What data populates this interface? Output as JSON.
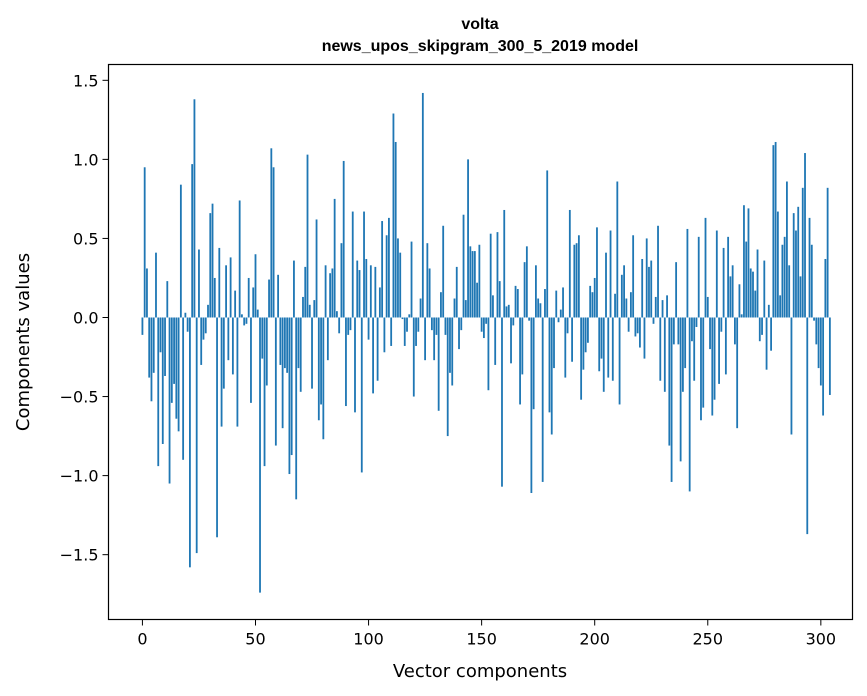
{
  "chart_data": {
    "type": "bar",
    "title": "volta",
    "subtitle": "news_upos_skipgram_300_5_2019 model",
    "xlabel": "Vector components",
    "ylabel": "Components values",
    "xlim": [
      -15,
      314
    ],
    "ylim": [
      -1.91,
      1.6
    ],
    "xticks": [
      0,
      50,
      100,
      150,
      200,
      250,
      300
    ],
    "yticks": [
      -1.5,
      -1.0,
      -0.5,
      0.0,
      0.5,
      1.0,
      1.5
    ],
    "ytick_labels": [
      "−1.5",
      "−1.0",
      "−0.5",
      "0.0",
      "0.5",
      "1.0",
      "1.5"
    ],
    "xtick_labels": [
      "0",
      "50",
      "100",
      "150",
      "200",
      "250",
      "300"
    ],
    "grid": false,
    "bar_color": "#1f77b4",
    "values": [
      -0.11,
      0.95,
      0.31,
      -0.38,
      -0.53,
      -0.35,
      0.41,
      -0.94,
      -0.22,
      -0.8,
      -0.37,
      0.23,
      -1.05,
      -0.54,
      -0.42,
      -0.64,
      -0.72,
      0.84,
      -0.9,
      0.03,
      -0.09,
      -1.58,
      0.97,
      1.38,
      -1.49,
      0.43,
      -0.3,
      -0.14,
      -0.1,
      0.08,
      0.66,
      0.72,
      0.25,
      -1.39,
      0.44,
      -0.69,
      -0.45,
      0.33,
      -0.27,
      0.38,
      -0.36,
      0.17,
      -0.69,
      0.74,
      0.02,
      -0.05,
      -0.04,
      0.25,
      -0.54,
      0.19,
      0.4,
      0.05,
      -1.74,
      -0.26,
      -0.94,
      -0.43,
      0.24,
      1.07,
      0.95,
      -0.81,
      0.27,
      -0.3,
      -0.7,
      -0.32,
      -0.35,
      -0.99,
      -0.87,
      0.36,
      -1.15,
      -0.32,
      -0.47,
      0.13,
      0.32,
      1.03,
      0.08,
      -0.45,
      0.11,
      0.62,
      -0.65,
      -0.55,
      -0.77,
      0.33,
      -0.27,
      0.28,
      0.31,
      0.75,
      0.04,
      -0.1,
      0.47,
      0.99,
      -0.56,
      -0.11,
      -0.08,
      0.67,
      -0.6,
      0.36,
      0.3,
      -0.98,
      0.67,
      0.37,
      -0.14,
      0.33,
      -0.48,
      0.32,
      -0.4,
      0.19,
      0.61,
      -0.22,
      0.52,
      0.63,
      -0.18,
      1.29,
      1.11,
      0.5,
      0.41,
      -0.01,
      -0.18,
      -0.09,
      0.02,
      0.48,
      -0.5,
      -0.18,
      -0.09,
      0.12,
      1.42,
      -0.27,
      0.47,
      0.31,
      -0.08,
      -0.27,
      -0.11,
      -0.59,
      0.16,
      0.58,
      -0.11,
      -0.75,
      -0.35,
      -0.43,
      0.12,
      0.32,
      -0.2,
      -0.08,
      0.65,
      0.11,
      1.0,
      0.45,
      0.42,
      0.42,
      0.22,
      0.46,
      -0.09,
      -0.13,
      -0.04,
      -0.46,
      0.53,
      0.14,
      -0.3,
      0.54,
      0.23,
      -1.07,
      0.68,
      0.07,
      0.08,
      -0.29,
      -0.05,
      0.2,
      0.18,
      -0.55,
      -0.36,
      0.35,
      0.45,
      -0.02,
      -1.11,
      -0.58,
      0.33,
      0.12,
      0.09,
      -1.04,
      0.18,
      0.93,
      -0.6,
      -0.74,
      -0.32,
      0.17,
      -0.03,
      0.05,
      0.19,
      -0.38,
      -0.1,
      0.68,
      -0.28,
      0.46,
      0.47,
      0.52,
      -0.52,
      -0.33,
      -0.22,
      -0.16,
      0.2,
      0.16,
      0.25,
      0.57,
      -0.34,
      -0.26,
      -0.47,
      0.41,
      -0.38,
      0.55,
      -0.4,
      0.15,
      0.86,
      -0.55,
      0.27,
      0.33,
      0.12,
      -0.09,
      0.16,
      0.52,
      -0.12,
      -0.1,
      -0.19,
      0.37,
      -0.26,
      0.5,
      0.32,
      0.36,
      -0.04,
      0.13,
      0.58,
      -0.4,
      0.11,
      -0.47,
      0.14,
      -0.81,
      -1.04,
      -0.17,
      0.35,
      -0.17,
      -0.91,
      -0.47,
      -0.32,
      0.56,
      -1.1,
      -0.15,
      -0.4,
      -0.06,
      0.51,
      -0.65,
      -0.57,
      0.63,
      0.13,
      -0.2,
      -0.62,
      -0.52,
      0.55,
      -0.42,
      -0.09,
      0.44,
      -0.36,
      0.51,
      0.26,
      0.33,
      -0.17,
      -0.7,
      0.21,
      0.02,
      0.71,
      0.48,
      0.69,
      0.31,
      0.29,
      0.17,
      0.43,
      -0.15,
      -0.11,
      0.36,
      -0.33,
      0.08,
      -0.21,
      1.09,
      1.11,
      0.67,
      0.14,
      0.46,
      0.51,
      0.86,
      0.33,
      -0.74,
      0.66,
      0.55,
      0.7,
      0.26,
      0.82,
      1.04,
      -1.37,
      0.63,
      0.46,
      -0.02,
      -0.17,
      -0.32,
      -0.43,
      -0.62,
      0.37,
      0.82,
      -0.49
    ]
  }
}
